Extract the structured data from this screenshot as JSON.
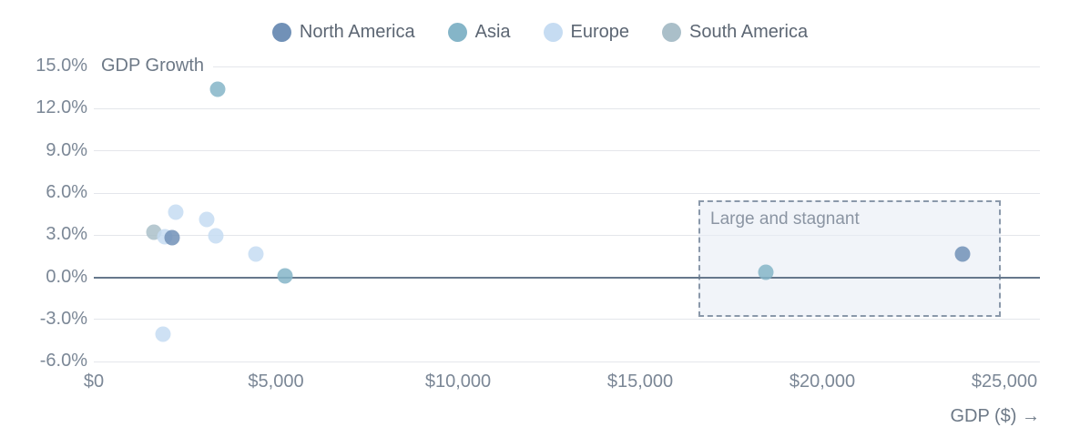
{
  "legend": {
    "items": [
      {
        "label": "North America",
        "color": "#7191b7"
      },
      {
        "label": "Asia",
        "color": "#85b5c8"
      },
      {
        "label": "Europe",
        "color": "#c6dcf2"
      },
      {
        "label": "South America",
        "color": "#aabfc9"
      }
    ]
  },
  "axes": {
    "y": {
      "title": "GDP Growth",
      "ticks": [
        {
          "value": 15,
          "label": "15.0%"
        },
        {
          "value": 12,
          "label": "12.0%"
        },
        {
          "value": 9,
          "label": "9.0%"
        },
        {
          "value": 6,
          "label": "6.0%"
        },
        {
          "value": 3,
          "label": "3.0%"
        },
        {
          "value": 0,
          "label": "0.0%"
        },
        {
          "value": -3,
          "label": "-3.0%"
        },
        {
          "value": -6,
          "label": "-6.0%"
        }
      ]
    },
    "x": {
      "title": "GDP ($) →",
      "ticks": [
        {
          "value": 0,
          "label": "$0"
        },
        {
          "value": 5000,
          "label": "$5,000"
        },
        {
          "value": 10000,
          "label": "$10,000"
        },
        {
          "value": 15000,
          "label": "$15,000"
        },
        {
          "value": 20000,
          "label": "$20,000"
        },
        {
          "value": 25000,
          "label": "$25,000"
        }
      ]
    }
  },
  "annotation": {
    "label": "Large and stagnant",
    "x_range": [
      16600,
      24900
    ],
    "y_range": [
      -2.8,
      5.5
    ]
  },
  "chart_data": {
    "type": "scatter",
    "title": "",
    "xlabel": "GDP ($)",
    "ylabel": "GDP Growth",
    "xlim": [
      0,
      26000
    ],
    "ylim": [
      -6,
      15
    ],
    "grid": true,
    "legend_position": "top-center",
    "y_unit": "percent",
    "series": [
      {
        "name": "North America",
        "color": "#7191b7",
        "points": [
          [
            2150,
            2.8
          ],
          [
            23850,
            1.65
          ]
        ]
      },
      {
        "name": "Asia",
        "color": "#85b5c8",
        "points": [
          [
            3400,
            13.4
          ],
          [
            5250,
            0.1
          ],
          [
            18450,
            0.35
          ]
        ]
      },
      {
        "name": "Europe",
        "color": "#c6dcf2",
        "points": [
          [
            2250,
            4.65
          ],
          [
            3100,
            4.15
          ],
          [
            1950,
            2.9
          ],
          [
            3350,
            2.95
          ],
          [
            4450,
            1.65
          ],
          [
            1900,
            -4.05
          ]
        ]
      },
      {
        "name": "South America",
        "color": "#aabfc9",
        "points": [
          [
            1650,
            3.2
          ]
        ]
      }
    ],
    "annotations": [
      {
        "label": "Large and stagnant",
        "x_range": [
          16600,
          24900
        ],
        "y_range": [
          -2.8,
          5.5
        ],
        "style": "dashed-box"
      }
    ]
  }
}
